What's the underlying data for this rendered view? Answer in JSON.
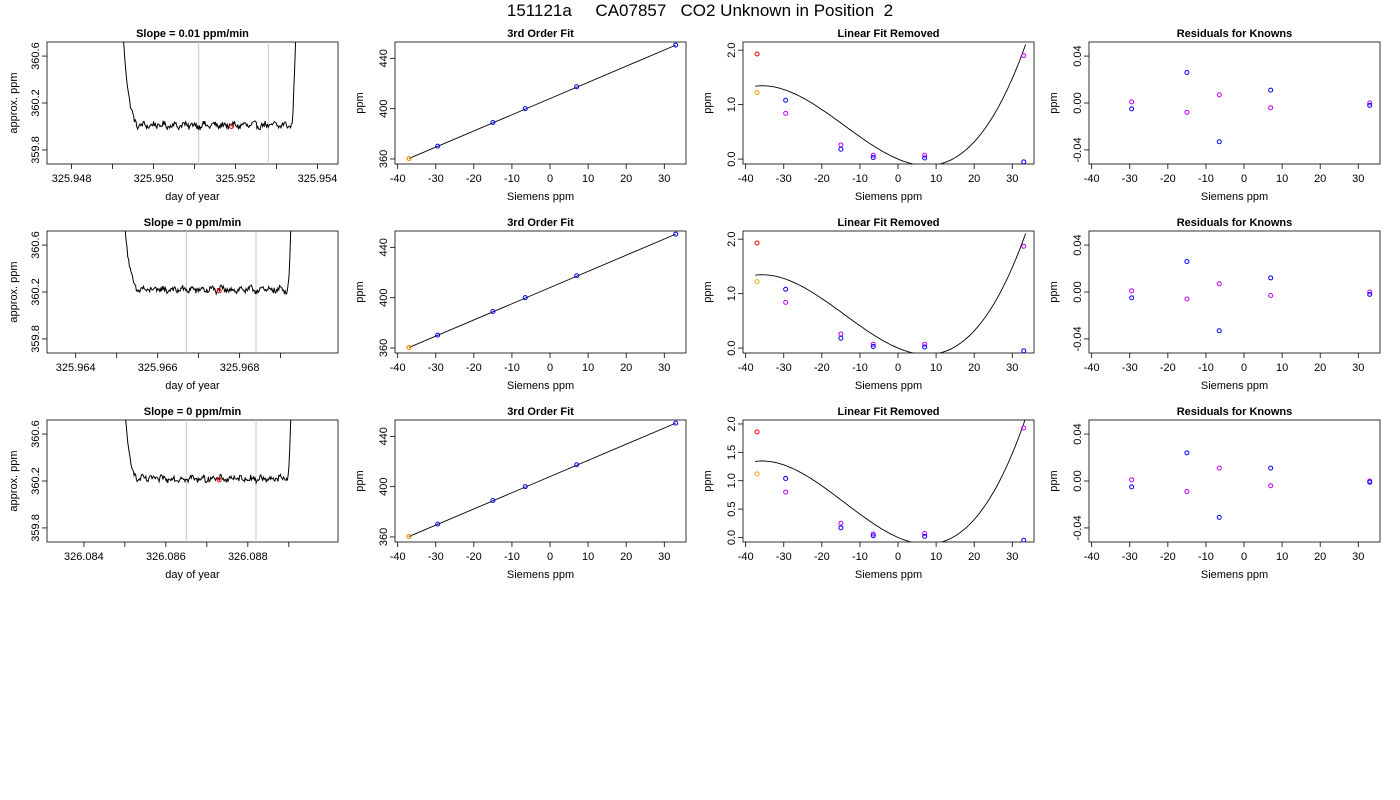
{
  "title": "151121a     CA07857   CO2 Unknown in Position  2",
  "common": {
    "x_label_time": "day of year",
    "y_label_time": "approx. ppm",
    "x_label_siemens": "Siemens ppm",
    "y_label_ppm": "ppm",
    "fit_title": "3rd Order Fit",
    "linear_title": "Linear Fit Removed",
    "resid_title": "Residuals for Knowns"
  },
  "colors": {
    "line": "#000000",
    "grid": "#c8c8c8",
    "blue": "#0000ff",
    "magenta": "#c000ff",
    "orange": "#ffa500",
    "red": "#ff0000"
  },
  "chart_data": [
    {
      "row": 0,
      "col": 0,
      "type": "line",
      "title": "Slope =  0.01  ppm/min",
      "xlabel": "day of year",
      "ylabel": "approx. ppm",
      "xlim": [
        325.9474,
        325.9545
      ],
      "ylim": [
        359.68,
        360.72
      ],
      "xticks": [
        325.948,
        325.95,
        325.952,
        325.954
      ],
      "xtick_labels": [
        "325.948",
        "325.950",
        "325.952",
        "325.954"
      ],
      "xticks_minor": [
        325.949,
        325.951,
        325.953
      ],
      "yticks": [
        359.8,
        360.2,
        360.6
      ],
      "ytick_labels": [
        "359.8",
        "360.2",
        "360.6"
      ],
      "vlines": [
        325.9511,
        325.9528
      ],
      "x_start": 325.9492,
      "x_end": 325.9535,
      "base": 360.01,
      "marker": {
        "x": 325.9519,
        "y": 360.0
      }
    },
    {
      "row": 1,
      "col": 0,
      "type": "line",
      "title": "Slope =  0  ppm/min",
      "xlabel": "day of year",
      "ylabel": "approx. ppm",
      "xlim": [
        325.9633,
        325.9704
      ],
      "ylim": [
        359.68,
        360.72
      ],
      "xticks": [
        325.964,
        325.966,
        325.968
      ],
      "xtick_labels": [
        "325.964",
        "325.966",
        "325.968"
      ],
      "xticks_minor": [
        325.965,
        325.967,
        325.969
      ],
      "yticks": [
        359.8,
        360.2,
        360.6
      ],
      "ytick_labels": [
        "359.8",
        "360.2",
        "360.6"
      ],
      "vlines": [
        325.9667,
        325.9684
      ],
      "x_start": 325.9651,
      "x_end": 325.9693,
      "base": 360.22,
      "marker": {
        "x": 325.9675,
        "y": 360.21
      }
    },
    {
      "row": 2,
      "col": 0,
      "type": "line",
      "title": "Slope =  0  ppm/min",
      "xlabel": "day of year",
      "ylabel": "approx. ppm",
      "xlim": [
        326.0831,
        326.0902
      ],
      "ylim": [
        359.68,
        360.72
      ],
      "xticks": [
        326.084,
        326.086,
        326.088
      ],
      "xtick_labels": [
        "326.084",
        "326.086",
        "326.088"
      ],
      "xticks_minor": [
        326.085,
        326.087,
        326.089
      ],
      "yticks": [
        359.8,
        360.2,
        360.6
      ],
      "ytick_labels": [
        "359.8",
        "360.2",
        "360.6"
      ],
      "vlines": [
        326.0865,
        326.0882
      ],
      "x_start": 326.0849,
      "x_end": 326.0891,
      "base": 360.22,
      "marker": {
        "x": 326.0873,
        "y": 360.21
      }
    },
    {
      "row": 0,
      "col": 1,
      "type": "scatter",
      "title": "3rd Order Fit",
      "xlabel": "Siemens ppm",
      "ylabel": "ppm",
      "xlim": [
        -40.7,
        35.7
      ],
      "ylim": [
        356,
        453
      ],
      "xticks": [
        -40,
        -30,
        -20,
        -10,
        0,
        10,
        20,
        30
      ],
      "xtick_labels": [
        "-40",
        "-30",
        "-20",
        "-10",
        "0",
        "10",
        "20",
        "30"
      ],
      "yticks": [
        360,
        400,
        440
      ],
      "ytick_labels": [
        "360",
        "400",
        "440"
      ],
      "line_points": [
        [
          -37,
          360.4
        ],
        [
          33,
          450.5
        ]
      ],
      "points": [
        {
          "x": -37,
          "y": 360.4,
          "c": "red"
        },
        {
          "x": -37,
          "y": 360.4,
          "c": "orange"
        },
        {
          "x": -29.5,
          "y": 370.2,
          "c": "blue"
        },
        {
          "x": -15,
          "y": 389.0,
          "c": "blue"
        },
        {
          "x": -6.5,
          "y": 400.0,
          "c": "blue"
        },
        {
          "x": 7,
          "y": 417.4,
          "c": "blue"
        },
        {
          "x": 33,
          "y": 450.5,
          "c": "blue"
        }
      ]
    },
    {
      "row": 1,
      "col": 1,
      "type": "scatter",
      "title": "3rd Order Fit",
      "xlabel": "Siemens ppm",
      "ylabel": "ppm",
      "xlim": [
        -40.7,
        35.7
      ],
      "ylim": [
        356,
        453
      ],
      "xticks": [
        -40,
        -30,
        -20,
        -10,
        0,
        10,
        20,
        30
      ],
      "xtick_labels": [
        "-40",
        "-30",
        "-20",
        "-10",
        "0",
        "10",
        "20",
        "30"
      ],
      "yticks": [
        360,
        400,
        440
      ],
      "ytick_labels": [
        "360",
        "400",
        "440"
      ],
      "line_points": [
        [
          -37,
          360.4
        ],
        [
          33,
          450.5
        ]
      ],
      "points": [
        {
          "x": -37,
          "y": 360.4,
          "c": "red"
        },
        {
          "x": -37,
          "y": 360.4,
          "c": "orange"
        },
        {
          "x": -29.5,
          "y": 370.2,
          "c": "blue"
        },
        {
          "x": -15,
          "y": 389.0,
          "c": "blue"
        },
        {
          "x": -6.5,
          "y": 400.0,
          "c": "blue"
        },
        {
          "x": 7,
          "y": 417.4,
          "c": "blue"
        },
        {
          "x": 33,
          "y": 450.5,
          "c": "blue"
        }
      ]
    },
    {
      "row": 2,
      "col": 1,
      "type": "scatter",
      "title": "3rd Order Fit",
      "xlabel": "Siemens ppm",
      "ylabel": "ppm",
      "xlim": [
        -40.7,
        35.7
      ],
      "ylim": [
        356,
        453
      ],
      "xticks": [
        -40,
        -30,
        -20,
        -10,
        0,
        10,
        20,
        30
      ],
      "xtick_labels": [
        "-40",
        "-30",
        "-20",
        "-10",
        "0",
        "10",
        "20",
        "30"
      ],
      "yticks": [
        360,
        400,
        440
      ],
      "ytick_labels": [
        "360",
        "400",
        "440"
      ],
      "line_points": [
        [
          -37,
          360.4
        ],
        [
          33,
          450.5
        ]
      ],
      "points": [
        {
          "x": -37,
          "y": 360.4,
          "c": "red"
        },
        {
          "x": -37,
          "y": 360.4,
          "c": "orange"
        },
        {
          "x": -29.5,
          "y": 370.2,
          "c": "blue"
        },
        {
          "x": -15,
          "y": 389.0,
          "c": "blue"
        },
        {
          "x": -6.5,
          "y": 400.0,
          "c": "blue"
        },
        {
          "x": 7,
          "y": 417.4,
          "c": "blue"
        },
        {
          "x": 33,
          "y": 450.5,
          "c": "blue"
        }
      ]
    },
    {
      "row": 0,
      "col": 2,
      "type": "scatter",
      "title": "Linear Fit Removed",
      "xlabel": "Siemens ppm",
      "ylabel": "ppm",
      "xlim": [
        -40.7,
        35.7
      ],
      "ylim": [
        -0.09,
        2.15
      ],
      "xticks": [
        -40,
        -30,
        -20,
        -10,
        0,
        10,
        20,
        30
      ],
      "xtick_labels": [
        "-40",
        "-30",
        "-20",
        "-10",
        "0",
        "10",
        "20",
        "30"
      ],
      "yticks": [
        0.0,
        1.0,
        2.0
      ],
      "ytick_labels": [
        "0.0",
        "1.0",
        "2.0"
      ],
      "curve": {
        "x_from": -37.5,
        "x_to": 33.5,
        "coef": [
          0.0,
          -0.0294,
          0.001533,
          3.64e-05
        ]
      },
      "points": [
        {
          "x": -37,
          "y": 1.93,
          "c": "red"
        },
        {
          "x": -37,
          "y": 1.22,
          "c": "orange"
        },
        {
          "x": -29.5,
          "y": 1.08,
          "c": "blue"
        },
        {
          "x": -29.5,
          "y": 0.84,
          "c": "magenta"
        },
        {
          "x": -15,
          "y": 0.26,
          "c": "magenta"
        },
        {
          "x": -15,
          "y": 0.18,
          "c": "blue"
        },
        {
          "x": -6.5,
          "y": 0.07,
          "c": "magenta"
        },
        {
          "x": -6.5,
          "y": 0.03,
          "c": "blue"
        },
        {
          "x": 7,
          "y": 0.07,
          "c": "magenta"
        },
        {
          "x": 7,
          "y": 0.02,
          "c": "blue"
        },
        {
          "x": 33,
          "y": 1.9,
          "c": "magenta"
        },
        {
          "x": 33,
          "y": -0.05,
          "c": "blue"
        }
      ]
    },
    {
      "row": 1,
      "col": 2,
      "type": "scatter",
      "title": "Linear Fit Removed",
      "xlabel": "Siemens ppm",
      "ylabel": "ppm",
      "xlim": [
        -40.7,
        35.7
      ],
      "ylim": [
        -0.09,
        2.15
      ],
      "xticks": [
        -40,
        -30,
        -20,
        -10,
        0,
        10,
        20,
        30
      ],
      "xtick_labels": [
        "-40",
        "-30",
        "-20",
        "-10",
        "0",
        "10",
        "20",
        "30"
      ],
      "yticks": [
        0.0,
        1.0,
        2.0
      ],
      "ytick_labels": [
        "0.0",
        "1.0",
        "2.0"
      ],
      "curve": {
        "x_from": -37.5,
        "x_to": 33.5,
        "coef": [
          0.0,
          -0.0294,
          0.001533,
          3.64e-05
        ]
      },
      "points": [
        {
          "x": -37,
          "y": 1.93,
          "c": "red"
        },
        {
          "x": -37,
          "y": 1.22,
          "c": "orange"
        },
        {
          "x": -29.5,
          "y": 1.08,
          "c": "blue"
        },
        {
          "x": -29.5,
          "y": 0.84,
          "c": "magenta"
        },
        {
          "x": -15,
          "y": 0.26,
          "c": "magenta"
        },
        {
          "x": -15,
          "y": 0.18,
          "c": "blue"
        },
        {
          "x": -6.5,
          "y": 0.07,
          "c": "magenta"
        },
        {
          "x": -6.5,
          "y": 0.03,
          "c": "blue"
        },
        {
          "x": 7,
          "y": 0.07,
          "c": "magenta"
        },
        {
          "x": 7,
          "y": 0.02,
          "c": "blue"
        },
        {
          "x": 33,
          "y": 1.87,
          "c": "magenta"
        },
        {
          "x": 33,
          "y": -0.05,
          "c": "blue"
        }
      ]
    },
    {
      "row": 2,
      "col": 2,
      "type": "scatter",
      "title": "Linear Fit Removed",
      "xlabel": "Siemens ppm",
      "ylabel": "ppm",
      "xlim": [
        -40.7,
        35.7
      ],
      "ylim": [
        -0.08,
        2.07
      ],
      "xticks": [
        -40,
        -30,
        -20,
        -10,
        0,
        10,
        20,
        30
      ],
      "xtick_labels": [
        "-40",
        "-30",
        "-20",
        "-10",
        "0",
        "10",
        "20",
        "30"
      ],
      "yticks": [
        0.0,
        0.5,
        1.0,
        1.5,
        2.0
      ],
      "ytick_labels": [
        "0.0",
        "0.5",
        "1.0",
        "1.5",
        "2.0"
      ],
      "curve": {
        "x_from": -37.5,
        "x_to": 33.5,
        "coef": [
          0.0,
          -0.0294,
          0.001533,
          3.64e-05
        ]
      },
      "points": [
        {
          "x": -37,
          "y": 1.86,
          "c": "red"
        },
        {
          "x": -37,
          "y": 1.12,
          "c": "orange"
        },
        {
          "x": -29.5,
          "y": 1.04,
          "c": "blue"
        },
        {
          "x": -29.5,
          "y": 0.8,
          "c": "magenta"
        },
        {
          "x": -15,
          "y": 0.25,
          "c": "magenta"
        },
        {
          "x": -15,
          "y": 0.17,
          "c": "blue"
        },
        {
          "x": -6.5,
          "y": 0.06,
          "c": "magenta"
        },
        {
          "x": -6.5,
          "y": 0.03,
          "c": "blue"
        },
        {
          "x": 7,
          "y": 0.07,
          "c": "magenta"
        },
        {
          "x": 7,
          "y": 0.02,
          "c": "blue"
        },
        {
          "x": 33,
          "y": 1.93,
          "c": "magenta"
        },
        {
          "x": 33,
          "y": -0.05,
          "c": "blue"
        }
      ]
    },
    {
      "row": 0,
      "col": 3,
      "type": "scatter",
      "title": "Residuals for Knowns",
      "xlabel": "Siemens ppm",
      "ylabel": "ppm",
      "xlim": [
        -40.7,
        35.7
      ],
      "ylim": [
        -0.052,
        0.052
      ],
      "xticks": [
        -40,
        -30,
        -20,
        -10,
        0,
        10,
        20,
        30
      ],
      "xtick_labels": [
        "-40",
        "-30",
        "-20",
        "-10",
        "0",
        "10",
        "20",
        "30"
      ],
      "yticks": [
        -0.04,
        0.0,
        0.04
      ],
      "ytick_labels": [
        "-0.04",
        "0.00",
        "0.04"
      ],
      "points": [
        {
          "x": -29.5,
          "y": 0.001,
          "c": "magenta"
        },
        {
          "x": -29.5,
          "y": -0.005,
          "c": "blue"
        },
        {
          "x": -15,
          "y": 0.026,
          "c": "blue"
        },
        {
          "x": -15,
          "y": -0.008,
          "c": "magenta"
        },
        {
          "x": -6.5,
          "y": 0.007,
          "c": "magenta"
        },
        {
          "x": -6.5,
          "y": -0.033,
          "c": "blue"
        },
        {
          "x": 7,
          "y": 0.011,
          "c": "blue"
        },
        {
          "x": 7,
          "y": -0.004,
          "c": "magenta"
        },
        {
          "x": 33,
          "y": 0.0,
          "c": "magenta"
        },
        {
          "x": 33,
          "y": -0.002,
          "c": "blue"
        }
      ]
    },
    {
      "row": 1,
      "col": 3,
      "type": "scatter",
      "title": "Residuals for Knowns",
      "xlabel": "Siemens ppm",
      "ylabel": "ppm",
      "xlim": [
        -40.7,
        35.7
      ],
      "ylim": [
        -0.052,
        0.052
      ],
      "xticks": [
        -40,
        -30,
        -20,
        -10,
        0,
        10,
        20,
        30
      ],
      "xtick_labels": [
        "-40",
        "-30",
        "-20",
        "-10",
        "0",
        "10",
        "20",
        "30"
      ],
      "yticks": [
        -0.04,
        0.0,
        0.04
      ],
      "ytick_labels": [
        "-0.04",
        "0.00",
        "0.04"
      ],
      "points": [
        {
          "x": -29.5,
          "y": 0.001,
          "c": "magenta"
        },
        {
          "x": -29.5,
          "y": -0.005,
          "c": "blue"
        },
        {
          "x": -15,
          "y": 0.026,
          "c": "blue"
        },
        {
          "x": -15,
          "y": -0.006,
          "c": "magenta"
        },
        {
          "x": -6.5,
          "y": 0.007,
          "c": "magenta"
        },
        {
          "x": -6.5,
          "y": -0.033,
          "c": "blue"
        },
        {
          "x": 7,
          "y": 0.012,
          "c": "blue"
        },
        {
          "x": 7,
          "y": -0.003,
          "c": "magenta"
        },
        {
          "x": 33,
          "y": 0.0,
          "c": "magenta"
        },
        {
          "x": 33,
          "y": -0.002,
          "c": "blue"
        }
      ]
    },
    {
      "row": 2,
      "col": 3,
      "type": "scatter",
      "title": "Residuals for Knowns",
      "xlabel": "Siemens ppm",
      "ylabel": "ppm",
      "xlim": [
        -40.7,
        35.7
      ],
      "ylim": [
        -0.052,
        0.052
      ],
      "xticks": [
        -40,
        -30,
        -20,
        -10,
        0,
        10,
        20,
        30
      ],
      "xtick_labels": [
        "-40",
        "-30",
        "-20",
        "-10",
        "0",
        "10",
        "20",
        "30"
      ],
      "yticks": [
        -0.04,
        0.0,
        0.04
      ],
      "ytick_labels": [
        "-0.04",
        "0.00",
        "0.04"
      ],
      "points": [
        {
          "x": -29.5,
          "y": 0.001,
          "c": "magenta"
        },
        {
          "x": -29.5,
          "y": -0.005,
          "c": "blue"
        },
        {
          "x": -15,
          "y": 0.024,
          "c": "blue"
        },
        {
          "x": -15,
          "y": -0.009,
          "c": "magenta"
        },
        {
          "x": -6.5,
          "y": 0.011,
          "c": "magenta"
        },
        {
          "x": -6.5,
          "y": -0.031,
          "c": "blue"
        },
        {
          "x": 7,
          "y": 0.011,
          "c": "blue"
        },
        {
          "x": 7,
          "y": -0.004,
          "c": "magenta"
        },
        {
          "x": 33,
          "y": 0.0,
          "c": "magenta"
        },
        {
          "x": 33,
          "y": -0.001,
          "c": "blue"
        }
      ]
    }
  ]
}
